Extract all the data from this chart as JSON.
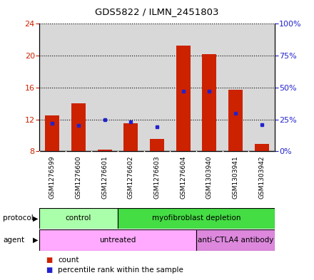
{
  "title": "GDS5822 / ILMN_2451803",
  "samples": [
    "GSM1276599",
    "GSM1276600",
    "GSM1276601",
    "GSM1276602",
    "GSM1276603",
    "GSM1276604",
    "GSM1303940",
    "GSM1303941",
    "GSM1303942"
  ],
  "count_values": [
    12.5,
    14.0,
    8.2,
    11.5,
    9.5,
    21.3,
    20.2,
    15.7,
    8.9
  ],
  "percentile_values_pct": [
    22,
    20,
    25,
    23,
    19,
    47,
    47,
    30,
    21
  ],
  "count_base": 8.0,
  "ylim_left": [
    8,
    24
  ],
  "ylim_right": [
    0,
    100
  ],
  "yticks_left": [
    8,
    12,
    16,
    20,
    24
  ],
  "yticks_right": [
    0,
    25,
    50,
    75,
    100
  ],
  "ytick_labels_right": [
    "0%",
    "25%",
    "50%",
    "75%",
    "100%"
  ],
  "bar_color": "#cc2200",
  "dot_color": "#2222cc",
  "bar_width": 0.55,
  "protocol_groups": [
    {
      "label": "control",
      "start": 0,
      "end": 3,
      "color": "#aaffaa"
    },
    {
      "label": "myofibroblast depletion",
      "start": 3,
      "end": 9,
      "color": "#44dd44"
    }
  ],
  "agent_groups": [
    {
      "label": "untreated",
      "start": 0,
      "end": 6,
      "color": "#ffaaff"
    },
    {
      "label": "anti-CTLA4 antibody",
      "start": 6,
      "end": 9,
      "color": "#dd88dd"
    }
  ],
  "legend_count_label": "count",
  "legend_percentile_label": "percentile rank within the sample",
  "col_bg_color": "#d8d8d8",
  "plot_bg": "#ffffff",
  "grid_color": "#000000",
  "left_tick_color": "#cc2200",
  "right_tick_color": "#2222cc"
}
